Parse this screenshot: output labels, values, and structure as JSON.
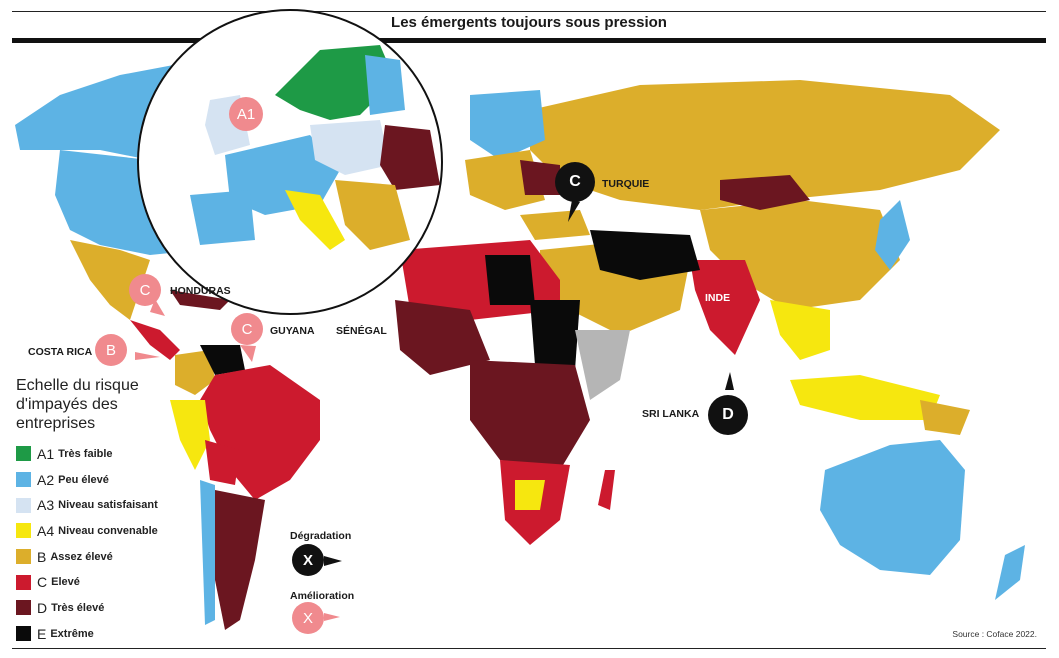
{
  "title": "Les émergents toujours sous pression",
  "source": "Source : Coface 2022.",
  "legend": {
    "title": "Echelle du risque d'impayés des entreprises",
    "items": [
      {
        "code": "A1",
        "label": "Très faible",
        "color": "#1e9a46"
      },
      {
        "code": "A2",
        "label": "Peu élevé",
        "color": "#5db3e4"
      },
      {
        "code": "A3",
        "label": "Niveau satisfaisant",
        "color": "#d5e3f2"
      },
      {
        "code": "A4",
        "label": "Niveau convenable",
        "color": "#f6e70f"
      },
      {
        "code": "B",
        "label": "Assez élevé",
        "color": "#dcae2b"
      },
      {
        "code": "C",
        "label": "Elevé",
        "color": "#cc1a2e"
      },
      {
        "code": "D",
        "label": "Très élevé",
        "color": "#6b1620"
      },
      {
        "code": "E",
        "label": "Extrême",
        "color": "#0a0a0a"
      }
    ]
  },
  "change_key": {
    "downgrade": {
      "label": "Dégradation",
      "symbol": "X"
    },
    "upgrade": {
      "label": "Amélioration",
      "symbol": "X"
    }
  },
  "callouts": [
    {
      "country": "TURQUIE",
      "rating": "C",
      "change": "downgrade"
    },
    {
      "country": "SRI LANKA",
      "rating": "D",
      "change": "downgrade"
    },
    {
      "country": "HONDURAS",
      "rating": "C",
      "change": "upgrade"
    },
    {
      "country": "COSTA RICA",
      "rating": "B",
      "change": "upgrade"
    },
    {
      "country": "GUYANA",
      "rating": "C",
      "change": "upgrade"
    },
    {
      "country": "SÉNÉGAL",
      "rating": "",
      "change": ""
    },
    {
      "country": "INDE",
      "rating": "",
      "change": ""
    }
  ],
  "inset": {
    "rating": "A1"
  }
}
